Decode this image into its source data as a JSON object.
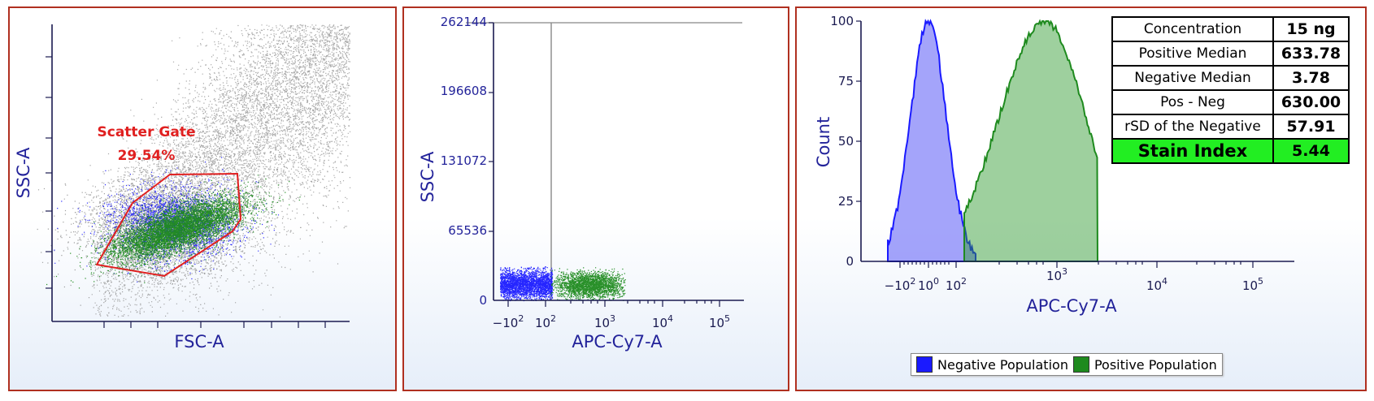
{
  "colors": {
    "negative": "#1a1aff",
    "positive": "#1e8a1e",
    "background_events": "#8a8a8a",
    "gate": "#e02020",
    "highlight": "#22ee22"
  },
  "panel1": {
    "xlabel": "FSC-A",
    "ylabel": "SSC-A",
    "gate_name": "Scatter Gate",
    "gate_percent": "29.54%"
  },
  "panel2": {
    "xlabel": "APC-Cy7-A",
    "ylabel": "SSC-A",
    "y_ticks": [
      "262144",
      "196608",
      "131072",
      "65536",
      "0"
    ]
  },
  "panel3": {
    "xlabel": "APC-Cy7-A",
    "ylabel": "Count",
    "y_ticks": [
      "100",
      "75",
      "50",
      "25",
      "0"
    ],
    "stats": [
      {
        "label": "Concentration",
        "value": "15 ng"
      },
      {
        "label": "Positive Median",
        "value": "633.78"
      },
      {
        "label": "Negative Median",
        "value": "3.78"
      },
      {
        "label": "Pos - Neg",
        "value": "630.00"
      },
      {
        "label": "rSD of the Negative",
        "value": "57.91"
      },
      {
        "label": "Stain Index",
        "value": "5.44"
      }
    ],
    "legend": {
      "negative": "Negative Population",
      "positive": "Positive Population"
    }
  },
  "chart_data": [
    {
      "type": "scatter",
      "xlabel": "FSC-A",
      "ylabel": "SSC-A",
      "annotations": [
        "Scatter Gate",
        "29.54%"
      ],
      "series": [
        {
          "name": "Negative Population"
        },
        {
          "name": "Positive Population"
        }
      ]
    },
    {
      "type": "scatter",
      "xlabel": "APC-Cy7-A",
      "ylabel": "SSC-A",
      "ylim": [
        0,
        262144
      ],
      "y_ticks": [
        0,
        65536,
        131072,
        196608,
        262144
      ],
      "x_scale": "biexponential",
      "x_tick_labels": [
        "-10^2",
        "10^2",
        "10^3",
        "10^4",
        "10^5"
      ],
      "series": [
        {
          "name": "Negative Population",
          "x_center": 3.78,
          "y_center": 18000
        },
        {
          "name": "Positive Population",
          "x_center": 633.78,
          "y_center": 15000
        }
      ]
    },
    {
      "type": "area",
      "xlabel": "APC-Cy7-A",
      "ylabel": "Count",
      "ylim": [
        0,
        100
      ],
      "y_ticks": [
        0,
        25,
        50,
        75,
        100
      ],
      "x_scale": "biexponential",
      "x_tick_labels": [
        "-10^2",
        "10^0",
        "10^2",
        "10^3",
        "10^4",
        "10^5"
      ],
      "series": [
        {
          "name": "Negative Population",
          "median": 3.78,
          "peak_count": 100
        },
        {
          "name": "Positive Population",
          "median": 633.78,
          "peak_count": 100
        }
      ],
      "table": {
        "Concentration": "15 ng",
        "Positive Median": "633.78",
        "Negative Median": "3.78",
        "Pos - Neg": "630.00",
        "rSD of the Negative": "57.91",
        "Stain Index": "5.44"
      }
    }
  ]
}
